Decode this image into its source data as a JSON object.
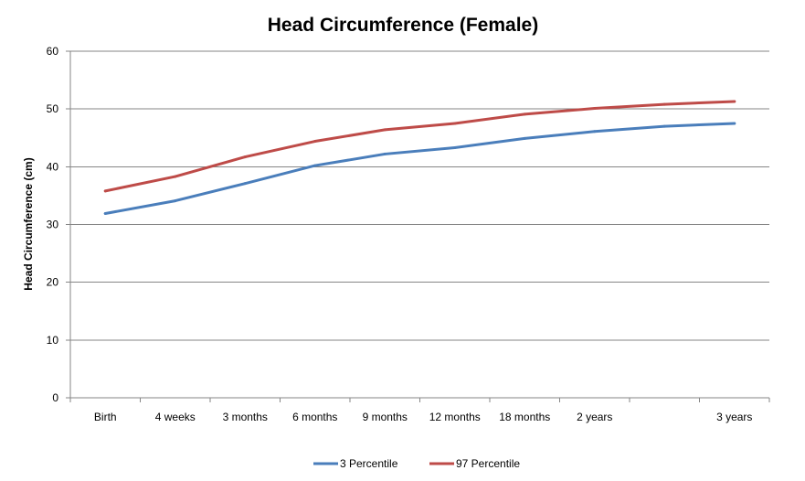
{
  "chart_data": {
    "type": "line",
    "title": "Head Circumference (Female)",
    "xlabel": "",
    "ylabel": "Head Circumference  (cm)",
    "categories": [
      "Birth",
      "4 weeks",
      "3 months",
      "6 months",
      "9 months",
      "12 months",
      "18 months",
      "2 years",
      "",
      "3 years"
    ],
    "ylim": [
      0,
      60
    ],
    "yticks": [
      0,
      10,
      20,
      30,
      40,
      50,
      60
    ],
    "grid": true,
    "legend_position": "bottom",
    "series": [
      {
        "name": "3 Percentile",
        "color": "#4a7ebb",
        "values": [
          31.9,
          34.1,
          37.1,
          40.2,
          42.2,
          43.3,
          44.9,
          46.1,
          47.0,
          47.5
        ]
      },
      {
        "name": "97 Percentile",
        "color": "#be4b48",
        "values": [
          35.8,
          38.3,
          41.7,
          44.4,
          46.4,
          47.5,
          49.1,
          50.1,
          50.8,
          51.3
        ]
      }
    ]
  }
}
